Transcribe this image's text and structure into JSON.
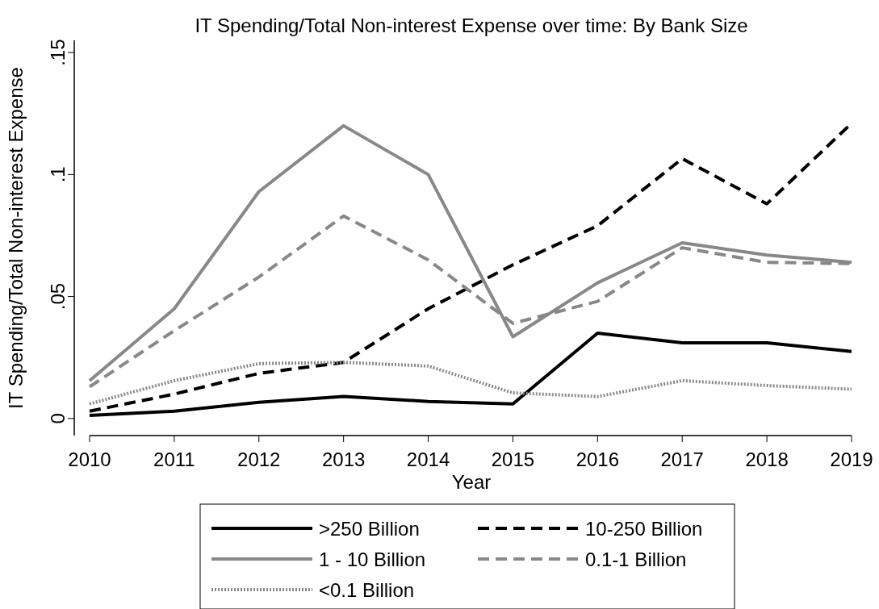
{
  "chart_data": {
    "type": "line",
    "title": "IT Spending/Total Non-interest Expense over time: By Bank Size",
    "xlabel": "Year",
    "ylabel": "IT Spending/Total Non-interest Expense",
    "x": [
      2010,
      2011,
      2012,
      2013,
      2014,
      2015,
      2016,
      2017,
      2018,
      2019
    ],
    "xlim": [
      2010,
      2019
    ],
    "xticks": [
      2010,
      2011,
      2012,
      2013,
      2014,
      2015,
      2016,
      2017,
      2018,
      2019
    ],
    "ylim": [
      -0.007,
      0.155
    ],
    "yticks": [
      0,
      {
        "value": 0.05,
        "label": ".05"
      },
      {
        "value": 0.1,
        "label": ".1"
      },
      {
        "value": 0.15,
        "label": ".15"
      }
    ],
    "grid": false,
    "legend": "bottom",
    "series": [
      {
        "name": ">250 Billion",
        "color": "#000000",
        "line_style": "solid",
        "values": [
          0.0013,
          0.003,
          0.0066,
          0.009,
          0.007,
          0.006,
          0.035,
          0.031,
          0.031,
          0.0275
        ]
      },
      {
        "name": "10-250 Billion",
        "color": "#000000",
        "line_style": "dashed",
        "values": [
          0.003,
          0.01,
          0.0185,
          0.023,
          0.045,
          0.063,
          0.079,
          0.1065,
          0.088,
          0.121
        ]
      },
      {
        "name": "1 - 10 Billion",
        "color": "#888888",
        "line_style": "solid",
        "values": [
          0.0155,
          0.045,
          0.093,
          0.12,
          0.1,
          0.0335,
          0.0556,
          0.072,
          0.067,
          0.064
        ]
      },
      {
        "name": "0.1-1 Billion",
        "color": "#888888",
        "line_style": "dashed",
        "values": [
          0.013,
          0.036,
          0.058,
          0.083,
          0.065,
          0.039,
          0.048,
          0.07,
          0.064,
          0.0635
        ]
      },
      {
        "name": "<0.1 Billion",
        "color": "#888888",
        "line_style": "dotted",
        "values": [
          0.006,
          0.0155,
          0.0225,
          0.023,
          0.0215,
          0.0105,
          0.009,
          0.0155,
          0.0135,
          0.012
        ]
      }
    ]
  }
}
